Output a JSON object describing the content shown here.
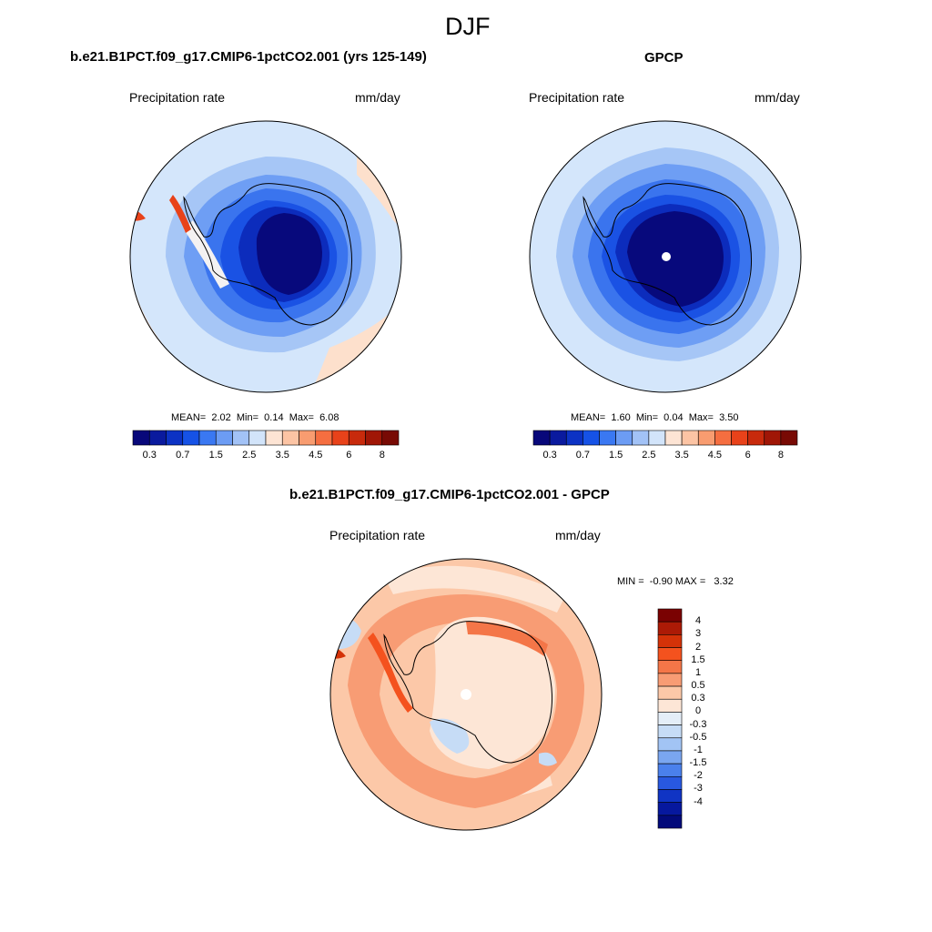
{
  "season_title": "DJF",
  "panel_model": {
    "title": "b.e21.B1PCT.f09_g17.CMIP6-1pctCO2.001 (yrs 125-149)",
    "variable": "Precipitation rate",
    "units": "mm/day",
    "stats": {
      "mean_label": "MEAN=",
      "mean": "2.02",
      "min_label": "Min=",
      "min": "0.14",
      "max_label": "Max=",
      "max": "6.08"
    }
  },
  "panel_obs": {
    "title": "GPCP",
    "variable": "Precipitation rate",
    "units": "mm/day",
    "stats": {
      "mean_label": "MEAN=",
      "mean": "1.60",
      "min_label": "Min=",
      "min": "0.04",
      "max_label": "Max=",
      "max": "3.50"
    }
  },
  "panel_diff": {
    "title": "b.e21.B1PCT.f09_g17.CMIP6-1pctCO2.001 - GPCP",
    "variable": "Precipitation rate",
    "units": "mm/day",
    "range": {
      "min_label": "MIN =",
      "min": "-0.90",
      "max_label": "MAX =",
      "max": "3.32"
    }
  },
  "colorbar_abs": {
    "colors": [
      "#08087a",
      "#0a1a9e",
      "#0c32c4",
      "#1652e6",
      "#3a78f2",
      "#6c9cf4",
      "#a2c2f6",
      "#d2e4fa",
      "#fde4d4",
      "#fcc4a4",
      "#f89c70",
      "#f56e40",
      "#e8421a",
      "#c82a0c",
      "#a01606",
      "#780a04"
    ],
    "tick_labels": [
      "0.3",
      "0.7",
      "1.5",
      "2.5",
      "3.5",
      "4.5",
      "6",
      "8"
    ]
  },
  "colorbar_diff": {
    "colors": [
      "#7a0202",
      "#ac1a06",
      "#d43208",
      "#f4521e",
      "#f47648",
      "#f89c74",
      "#fcc8a8",
      "#fde6d6",
      "#e4eef8",
      "#c6dcf6",
      "#a2c4f4",
      "#7aa6f0",
      "#4a80ec",
      "#2858e0",
      "#1034c4",
      "#06189e",
      "#020a7a"
    ],
    "tick_labels": [
      "4",
      "3",
      "2",
      "1.5",
      "1",
      "0.5",
      "0.3",
      "0",
      "-0.3",
      "-0.5",
      "-1",
      "-1.5",
      "-2",
      "-3",
      "-4"
    ]
  }
}
